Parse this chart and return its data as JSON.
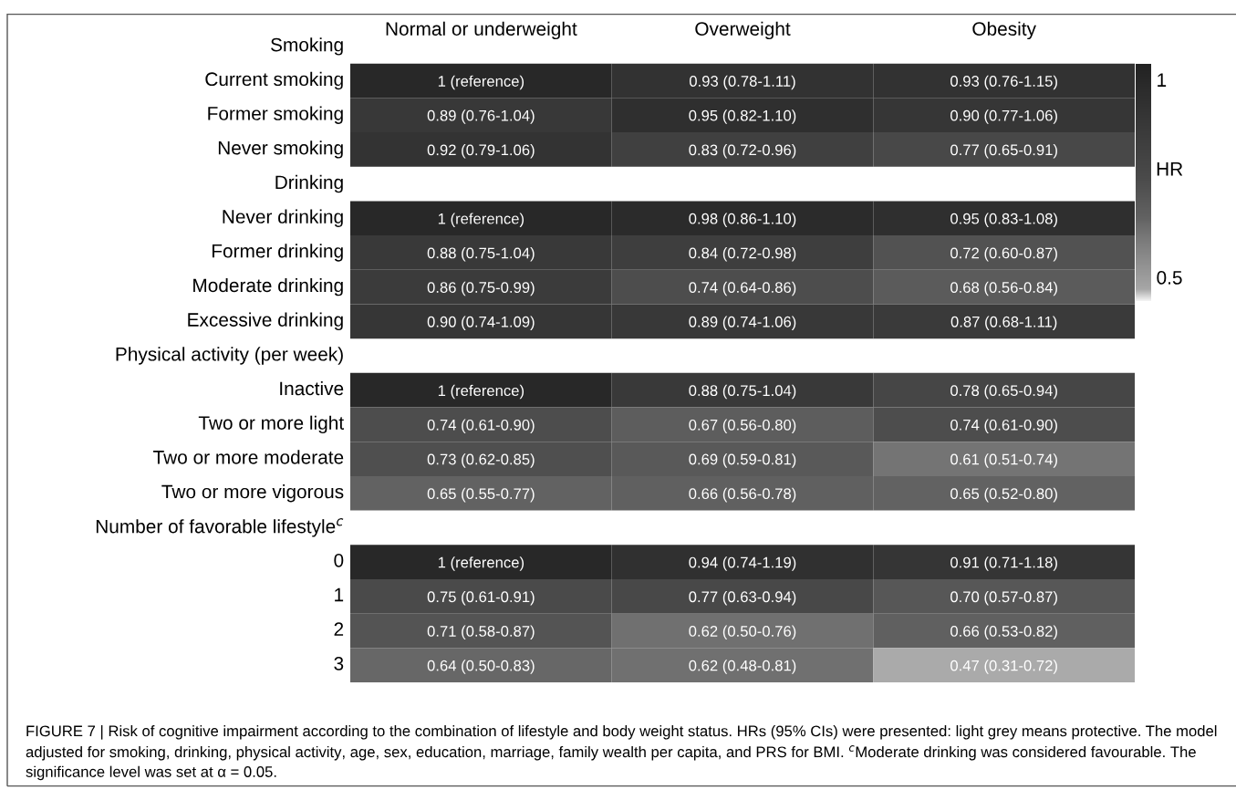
{
  "chart_data": {
    "type": "heatmap",
    "categories": [
      "Normal or underweight",
      "Overweight",
      "Obesity"
    ],
    "y_categories": [
      "Smoking",
      "Current smoking",
      "Former smoking",
      "Never smoking",
      "Drinking",
      "Never drinking",
      "Former drinking",
      "Moderate drinking",
      "Excessive drinking",
      "Physical activity (per week)",
      "Inactive",
      "Two or more light",
      "Two or more moderate",
      "Two or more vigorous",
      "Number of favorable lifestyle$^{c}$",
      "0",
      "1",
      "2",
      "3"
    ],
    "cells": [
      [
        null,
        null,
        null
      ],
      [
        1,
        0.93,
        0.93
      ],
      [
        0.89,
        0.95,
        0.9
      ],
      [
        0.92,
        0.83,
        0.77
      ],
      [
        null,
        null,
        null
      ],
      [
        1,
        0.98,
        0.95
      ],
      [
        0.88,
        0.84,
        0.72
      ],
      [
        0.86,
        0.74,
        0.68
      ],
      [
        0.9,
        0.89,
        0.87
      ],
      [
        null,
        null,
        null
      ],
      [
        1,
        0.88,
        0.78
      ],
      [
        0.74,
        0.67,
        0.74
      ],
      [
        0.73,
        0.69,
        0.61
      ],
      [
        0.65,
        0.66,
        0.65
      ],
      [
        null,
        null,
        null
      ],
      [
        1,
        0.94,
        0.91
      ],
      [
        0.75,
        0.77,
        0.7
      ],
      [
        0.71,
        0.62,
        0.66
      ],
      [
        0.64,
        0.62,
        0.47
      ]
    ],
    "cell_labels": [
      [
        null,
        null,
        null
      ],
      [
        "1 (reference)",
        "0.93 (0.78-1.11)",
        "0.93 (0.76-1.15)"
      ],
      [
        "0.89 (0.76-1.04)",
        "0.95 (0.82-1.10)",
        "0.90 (0.77-1.06)"
      ],
      [
        "0.92 (0.79-1.06)",
        "0.83 (0.72-0.96)",
        "0.77 (0.65-0.91)"
      ],
      [
        null,
        null,
        null
      ],
      [
        "1 (reference)",
        "0.98 (0.86-1.10)",
        "0.95 (0.83-1.08)"
      ],
      [
        "0.88 (0.75-1.04)",
        "0.84 (0.72-0.98)",
        "0.72 (0.60-0.87)"
      ],
      [
        "0.86 (0.75-0.99)",
        "0.74 (0.64-0.86)",
        "0.68 (0.56-0.84)"
      ],
      [
        "0.90 (0.74-1.09)",
        "0.89 (0.74-1.06)",
        "0.87 (0.68-1.11)"
      ],
      [
        null,
        null,
        null
      ],
      [
        "1 (reference)",
        "0.88 (0.75-1.04)",
        "0.78 (0.65-0.94)"
      ],
      [
        "0.74 (0.61-0.90)",
        "0.67 (0.56-0.80)",
        "0.74 (0.61-0.90)"
      ],
      [
        "0.73 (0.62-0.85)",
        "0.69 (0.59-0.81)",
        "0.61 (0.51-0.74)"
      ],
      [
        "0.65 (0.55-0.77)",
        "0.66 (0.56-0.78)",
        "0.65 (0.52-0.80)"
      ],
      [
        null,
        null,
        null
      ],
      [
        "1 (reference)",
        "0.94 (0.74-1.19)",
        "0.91 (0.71-1.18)"
      ],
      [
        "0.75 (0.61-0.91)",
        "0.77 (0.63-0.94)",
        "0.70 (0.57-0.87)"
      ],
      [
        "0.71 (0.58-0.87)",
        "0.62 (0.50-0.76)",
        "0.66 (0.53-0.82)"
      ],
      [
        "0.64 (0.50-0.83)",
        "0.62 (0.48-0.81)",
        "0.47 (0.31-0.72)"
      ]
    ],
    "clim": [
      0.44,
      1.04
    ],
    "cticks": [
      0.5,
      1
    ],
    "clabel": "HR",
    "annotations": [
      "FIGURE 7 | Risk of cognitive impairment according to the combination of lifestyle and body weight status. HRs (95% CIs) were presented: light grey means protective. The model adjusted for smoking, drinking, physical activity, age, sex, education, marriage, family wealth per capita, and PRS for BMI. $^{c}$Moderate drinking was considered favourable. The significance level was set at α = 0.05."
    ]
  }
}
